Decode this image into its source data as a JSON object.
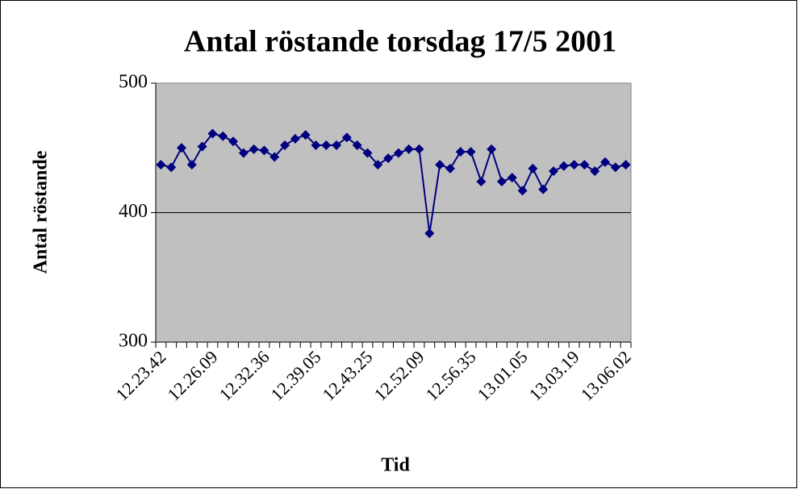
{
  "chart_data": {
    "type": "line",
    "title": "Antal röstande torsdag 17/5 2001",
    "xlabel": "Tid",
    "ylabel": "Antal röstande",
    "categories": [
      "12.23.42",
      null,
      null,
      null,
      null,
      "12.26.09",
      null,
      null,
      null,
      null,
      "12.32.36",
      null,
      null,
      null,
      null,
      "12.39.05",
      null,
      null,
      null,
      null,
      "12.43.25",
      null,
      null,
      null,
      null,
      "12.52.09",
      null,
      null,
      null,
      null,
      "12.56.35",
      null,
      null,
      null,
      null,
      "13.01.05",
      null,
      null,
      null,
      null,
      "13.03.19",
      null,
      null,
      null,
      null,
      "13.06.02"
    ],
    "series": [
      {
        "name": "Antal röstande",
        "color": "#000080",
        "values": [
          437,
          435,
          450,
          437,
          451,
          461,
          459,
          455,
          446,
          449,
          448,
          443,
          452,
          457,
          460,
          452,
          452,
          452,
          458,
          452,
          446,
          437,
          442,
          446,
          449,
          449,
          384,
          437,
          434,
          447,
          447,
          424,
          449,
          424,
          427,
          417,
          434,
          418,
          432,
          436,
          437,
          437,
          432,
          439,
          435,
          437
        ]
      }
    ],
    "ylim": [
      300,
      500
    ],
    "yticks": [
      300,
      400,
      500
    ],
    "grid": true
  }
}
